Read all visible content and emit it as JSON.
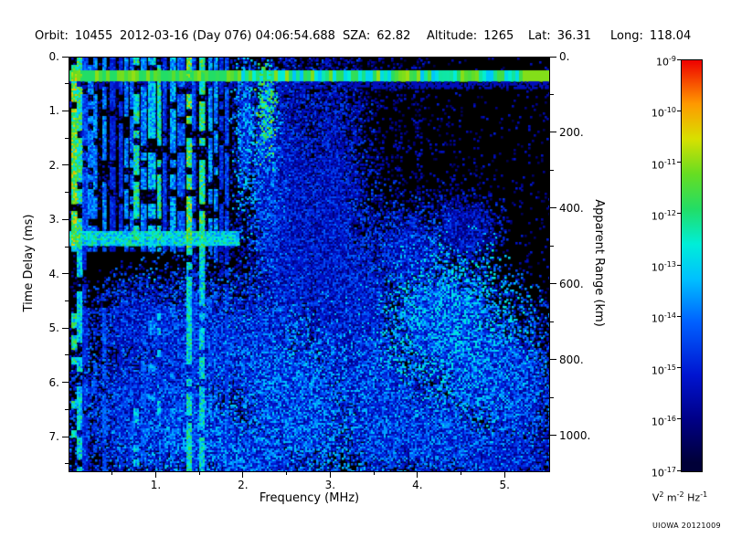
{
  "header": {
    "orbit_label": "Orbit:",
    "orbit_value": "10455",
    "datetime": "2012-03-16 (Day 076) 04:06:54.688",
    "sza_label": "SZA:",
    "sza_value": "62.82",
    "altitude_label": "Altitude:",
    "altitude_value": "1265",
    "lat_label": "Lat:",
    "lat_value": "36.31",
    "long_label": "Long:",
    "long_value": "118.04"
  },
  "chart_data": {
    "type": "heatmap",
    "title": "",
    "xlabel": "Frequency (MHz)",
    "ylabel": "Time Delay (ms)",
    "ylabel_right": "Apparent Range (km)",
    "x_range_mhz": [
      0,
      5.5
    ],
    "y_range_ms": [
      0,
      7.62
    ],
    "right_axis_range_km": [
      0,
      1092
    ],
    "grid": false,
    "x_ticks": {
      "major": [
        {
          "v": 1,
          "label": "1."
        },
        {
          "v": 2,
          "label": "2."
        },
        {
          "v": 3,
          "label": "3."
        },
        {
          "v": 4,
          "label": "4."
        },
        {
          "v": 5,
          "label": "5."
        }
      ],
      "minor": [
        0.5,
        1.5,
        2.5,
        3.5,
        4.5
      ]
    },
    "y_ticks": {
      "major": [
        {
          "v": 0,
          "label": "0."
        },
        {
          "v": 1,
          "label": "1."
        },
        {
          "v": 2,
          "label": "2."
        },
        {
          "v": 3,
          "label": "3."
        },
        {
          "v": 4,
          "label": "4."
        },
        {
          "v": 5,
          "label": "5."
        },
        {
          "v": 6,
          "label": "6."
        },
        {
          "v": 7,
          "label": "7."
        }
      ],
      "minor": [
        0.5,
        1.5,
        2.5,
        3.5,
        4.5,
        5.5,
        6.5,
        7.5
      ]
    },
    "right_ticks": {
      "major": [
        {
          "v": 0,
          "label": "0."
        },
        {
          "v": 200,
          "label": "200."
        },
        {
          "v": 400,
          "label": "400."
        },
        {
          "v": 600,
          "label": "600."
        },
        {
          "v": 800,
          "label": "800."
        },
        {
          "v": 1000,
          "label": "1000."
        }
      ],
      "minor": [
        100,
        300,
        500,
        700,
        900
      ]
    },
    "colorbar": {
      "tick_label_base": "10",
      "tick_exponents": [
        "-9",
        "-10",
        "-11",
        "-12",
        "-13",
        "-14",
        "-15",
        "-16",
        "-17"
      ],
      "unit": "V^2 m^-2 Hz^-1",
      "scale_max": "1e-9",
      "scale_min": "1e-17"
    },
    "colormap_stops": [
      [
        0.0,
        "#000000"
      ],
      [
        0.08,
        "#000038"
      ],
      [
        0.18,
        "#000088"
      ],
      [
        0.28,
        "#0014d0"
      ],
      [
        0.4,
        "#0060ff"
      ],
      [
        0.5,
        "#00c0ff"
      ],
      [
        0.58,
        "#00eed8"
      ],
      [
        0.66,
        "#22dd66"
      ],
      [
        0.74,
        "#66dd22"
      ],
      [
        0.82,
        "#d8e000"
      ],
      [
        0.9,
        "#ff9900"
      ],
      [
        1.0,
        "#ee0000"
      ]
    ],
    "features": {
      "striations": {
        "f_min": 0.06,
        "f_max": 1.88,
        "seed": 1234,
        "description": "dense vertical interference striations below ~1.9 MHz"
      },
      "surface_line": {
        "delay_min_ms": 0.22,
        "delay_max_ms": 0.44,
        "intensity": 0.65,
        "description": "bright horizontal trace across all frequencies near 0.3 ms delay"
      },
      "horizontal_band": {
        "delay_min_ms": 3.18,
        "delay_max_ms": 3.48,
        "f_max_mhz": 1.95,
        "intensity": 0.5
      },
      "dark_patch": {
        "f_min": 0.18,
        "f_max": 1.35,
        "d_min": 3.55,
        "d_max": 4.6
      },
      "speckle_columns_mhz": [
        2.25,
        2.45,
        2.65,
        3.0,
        3.3,
        3.55,
        3.75,
        4.0
      ],
      "clusters": [
        {
          "f": 2.26,
          "d": 0.95,
          "rf": 0.06,
          "rd": 0.55,
          "i": 0.55
        },
        {
          "f": 2.02,
          "d": 1.3,
          "rf": 0.08,
          "rd": 0.9,
          "i": 0.4
        },
        {
          "f": 2.25,
          "d": 2.2,
          "rf": 0.12,
          "rd": 1.2,
          "i": 0.35
        },
        {
          "f": 2.5,
          "d": 3.2,
          "rf": 0.3,
          "rd": 2.0,
          "i": 0.28
        },
        {
          "f": 3.0,
          "d": 3.6,
          "rf": 0.25,
          "rd": 2.2,
          "i": 0.27
        },
        {
          "f": 2.2,
          "d": 5.4,
          "rf": 0.35,
          "rd": 0.9,
          "i": 0.33
        },
        {
          "f": 2.6,
          "d": 6.4,
          "rf": 0.5,
          "rd": 1.0,
          "i": 0.38
        },
        {
          "f": 2.1,
          "d": 7.3,
          "rf": 0.5,
          "rd": 0.4,
          "i": 0.35
        },
        {
          "f": 3.3,
          "d": 5.1,
          "rf": 0.3,
          "rd": 1.5,
          "i": 0.3
        },
        {
          "f": 3.6,
          "d": 6.5,
          "rf": 0.35,
          "rd": 1.0,
          "i": 0.35
        },
        {
          "f": 3.9,
          "d": 3.6,
          "rf": 0.3,
          "rd": 0.5,
          "i": 0.3
        },
        {
          "f": 4.3,
          "d": 4.9,
          "rf": 0.45,
          "rd": 0.8,
          "i": 0.42
        },
        {
          "f": 4.7,
          "d": 5.7,
          "rf": 0.4,
          "rd": 0.8,
          "i": 0.38
        },
        {
          "f": 4.15,
          "d": 6.9,
          "rf": 0.5,
          "rd": 0.6,
          "i": 0.35
        },
        {
          "f": 5.1,
          "d": 6.15,
          "rf": 0.3,
          "rd": 0.9,
          "i": 0.33
        },
        {
          "f": 4.9,
          "d": 7.3,
          "rf": 0.5,
          "rd": 0.4,
          "i": 0.3
        },
        {
          "f": 4.5,
          "d": 3.2,
          "rf": 0.25,
          "rd": 0.4,
          "i": 0.25
        },
        {
          "f": 1.0,
          "d": 6.5,
          "rf": 0.6,
          "rd": 0.9,
          "i": 0.33
        },
        {
          "f": 1.5,
          "d": 5.3,
          "rf": 0.5,
          "rd": 0.8,
          "i": 0.33
        },
        {
          "f": 0.9,
          "d": 4.9,
          "rf": 0.4,
          "rd": 0.5,
          "i": 0.3
        },
        {
          "f": 1.55,
          "d": 7.0,
          "rf": 0.45,
          "rd": 0.5,
          "i": 0.38
        }
      ]
    }
  },
  "credit": "UIOWA 20121009"
}
